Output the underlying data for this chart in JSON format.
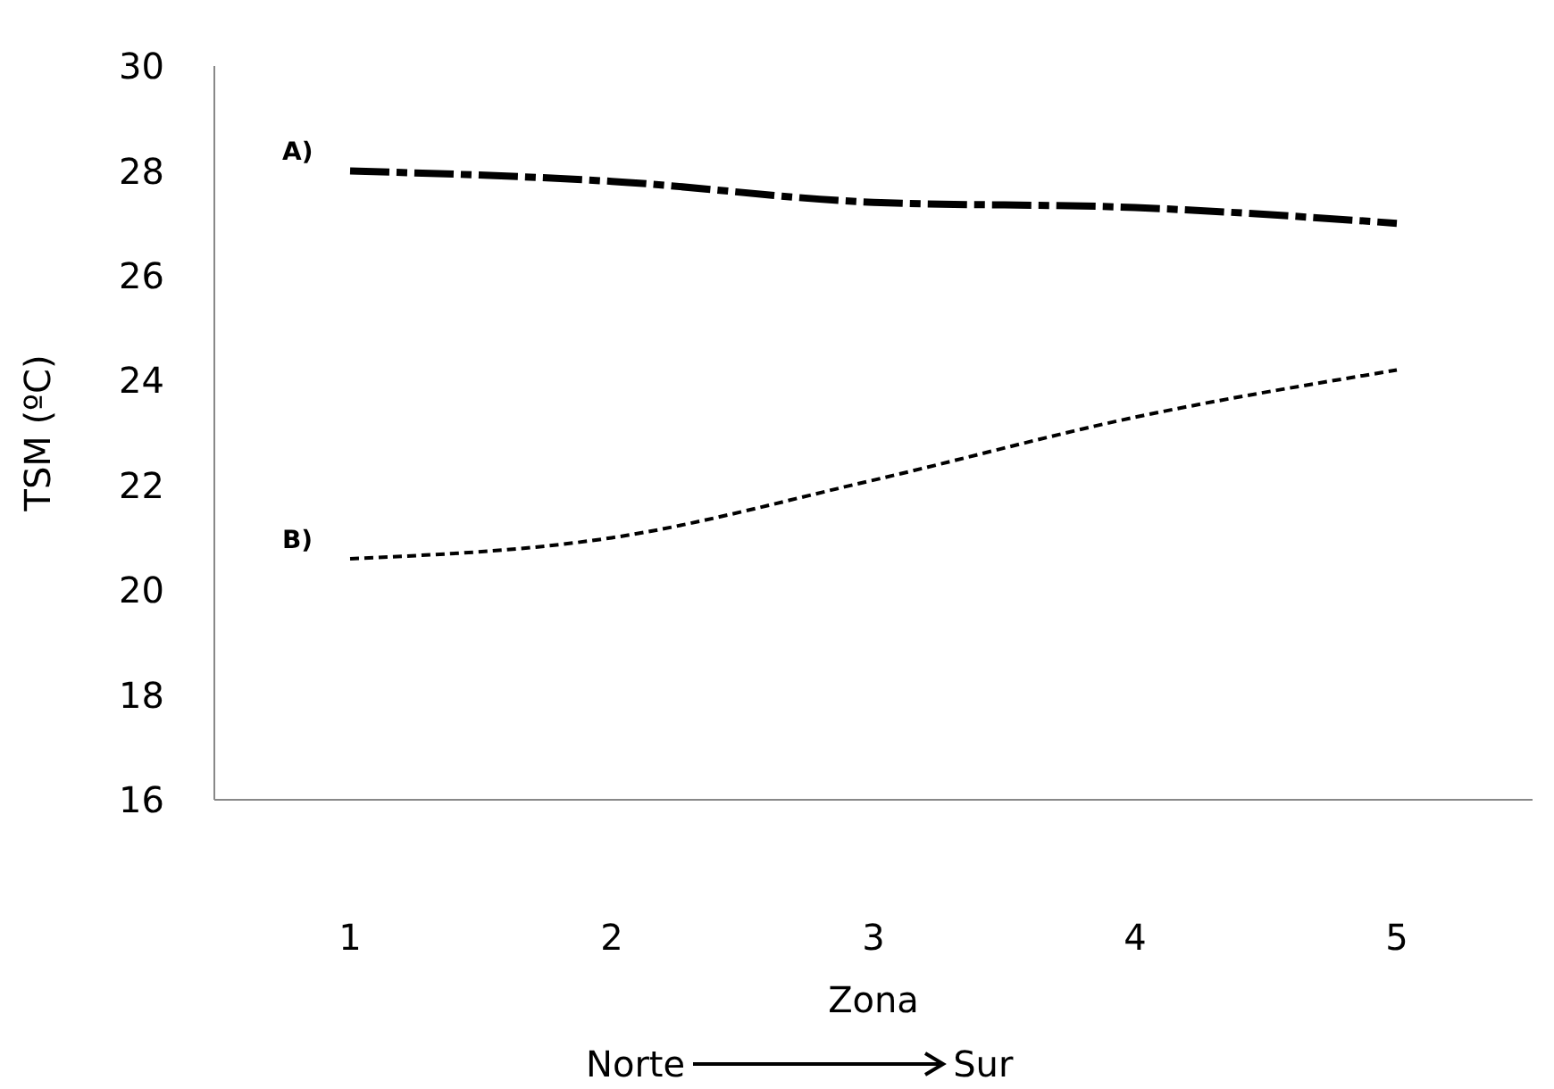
{
  "chart_data": {
    "type": "line",
    "xlabel": "Zona",
    "ylabel": "TSM (ºC)",
    "categories": [
      "1",
      "2",
      "3",
      "4",
      "5"
    ],
    "series": [
      {
        "name": "A)",
        "color": "#000000",
        "values": [
          28.0,
          27.8,
          27.4,
          27.3,
          27.0
        ],
        "line_style": "dashed"
      },
      {
        "name": "B)",
        "color": "#000000",
        "values": [
          20.6,
          21.0,
          22.1,
          23.3,
          24.2
        ],
        "line_style": "dotted"
      }
    ],
    "ylim": [
      16,
      30
    ],
    "yticks": [
      16,
      18,
      20,
      22,
      24,
      26,
      28,
      30
    ],
    "grid": false,
    "legend": false,
    "marker": "none",
    "annotations": [
      "Norte",
      "Sur"
    ]
  }
}
